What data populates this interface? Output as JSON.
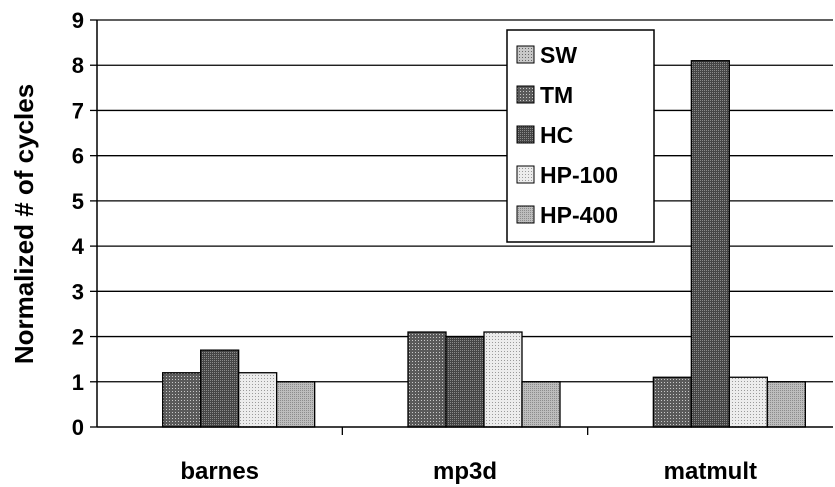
{
  "chart_data": {
    "type": "bar",
    "title": "",
    "xlabel": "",
    "ylabel": "Normalized # of cycles",
    "ylim": [
      0,
      9
    ],
    "yticks": [
      0,
      1,
      2,
      3,
      4,
      5,
      6,
      7,
      8,
      9
    ],
    "grid": true,
    "legend_position": "top-right",
    "categories": [
      "barnes",
      "mp3d",
      "matmult"
    ],
    "series": [
      {
        "name": "SW",
        "values": [
          0,
          0,
          0
        ],
        "pattern": "sw"
      },
      {
        "name": "TM",
        "values": [
          1.2,
          2.1,
          1.1
        ],
        "pattern": "tm"
      },
      {
        "name": "HC",
        "values": [
          1.7,
          2.0,
          8.1
        ],
        "pattern": "hc"
      },
      {
        "name": "HP-100",
        "values": [
          1.2,
          2.1,
          1.1
        ],
        "pattern": "hp100"
      },
      {
        "name": "HP-400",
        "values": [
          1.0,
          1.0,
          1.0
        ],
        "pattern": "hp400"
      }
    ]
  }
}
